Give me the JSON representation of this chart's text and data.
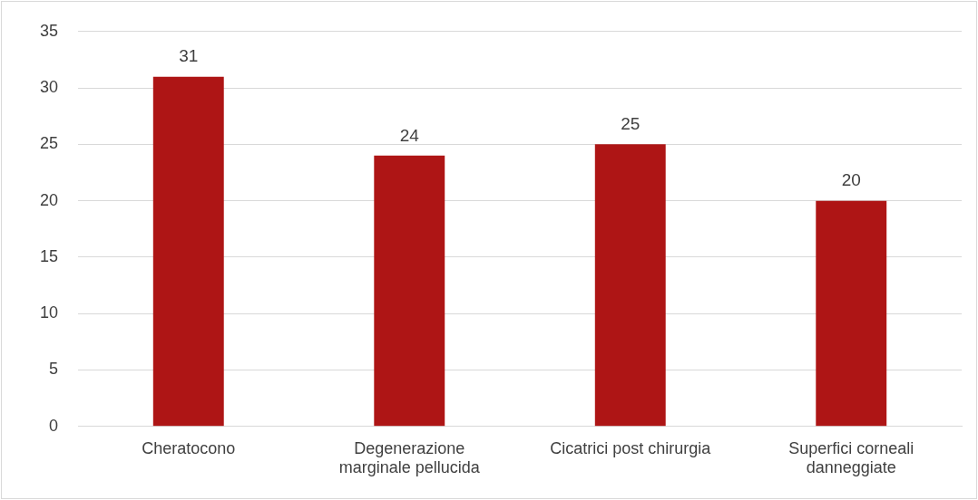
{
  "chart_data": {
    "type": "bar",
    "categories": [
      "Cheratocono",
      "Degenerazione marginale pellucida",
      "Cicatrici post chirurgia",
      "Superfici corneali danneggiate"
    ],
    "values": [
      31,
      24,
      25,
      20
    ],
    "color": "#ae1515",
    "ylim": [
      0,
      35
    ],
    "yticks": [
      0,
      5,
      10,
      15,
      20,
      25,
      30,
      35
    ],
    "grid": "y",
    "legend": false,
    "data_labels": true
  }
}
